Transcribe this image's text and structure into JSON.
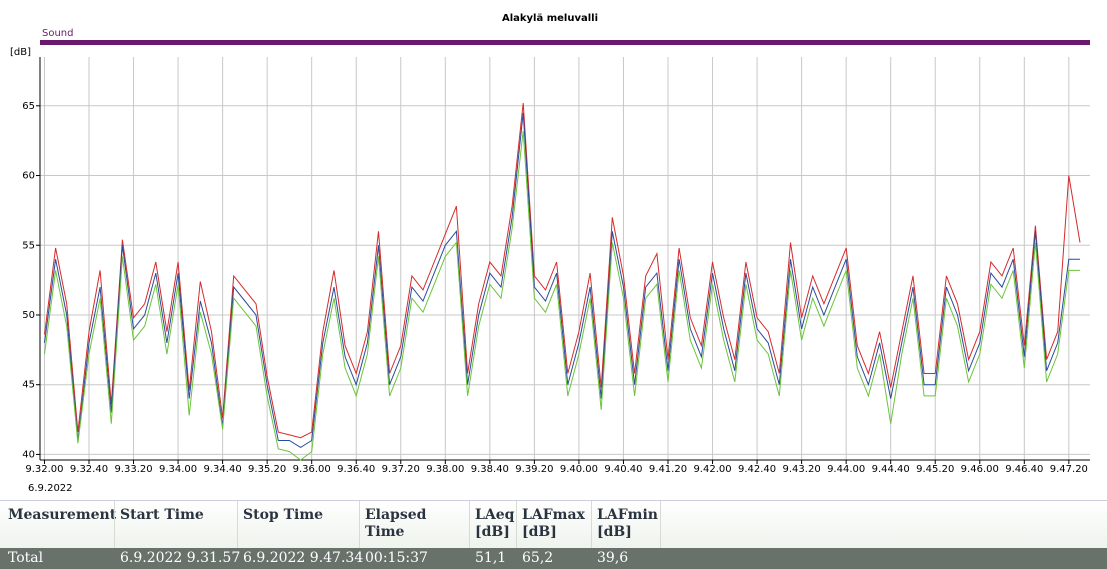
{
  "chart_data": {
    "type": "line",
    "title": "Alakylä meluvalli",
    "legend_label": "Sound",
    "legend_color": "#6a1a6e",
    "y_unit": "[dB]",
    "x_date": "6.9.2022",
    "x": [
      "9.32.00",
      "9.32.10",
      "9.32.20",
      "9.32.30",
      "9.32.40",
      "9.32.50",
      "9.33.00",
      "9.33.10",
      "9.33.20",
      "9.33.30",
      "9.33.40",
      "9.33.50",
      "9.34.00",
      "9.34.10",
      "9.34.20",
      "9.34.30",
      "9.34.40",
      "9.34.50",
      "9.35.00",
      "9.35.10",
      "9.35.20",
      "9.35.30",
      "9.35.40",
      "9.35.50",
      "9.36.00",
      "9.36.10",
      "9.36.20",
      "9.36.30",
      "9.36.40",
      "9.36.50",
      "9.37.00",
      "9.37.10",
      "9.37.20",
      "9.37.30",
      "9.37.40",
      "9.37.50",
      "9.38.00",
      "9.38.10",
      "9.38.20",
      "9.38.30",
      "9.38.40",
      "9.38.50",
      "9.39.00",
      "9.39.10",
      "9.39.20",
      "9.39.30",
      "9.39.40",
      "9.39.50",
      "9.40.00",
      "9.40.10",
      "9.40.20",
      "9.40.30",
      "9.40.40",
      "9.40.50",
      "9.41.00",
      "9.41.10",
      "9.41.20",
      "9.41.30",
      "9.41.40",
      "9.41.50",
      "9.42.00",
      "9.42.10",
      "9.42.20",
      "9.42.30",
      "9.42.40",
      "9.42.50",
      "9.43.00",
      "9.43.10",
      "9.43.20",
      "9.43.30",
      "9.43.40",
      "9.43.50",
      "9.44.00",
      "9.44.10",
      "9.44.20",
      "9.44.30",
      "9.44.40",
      "9.44.50",
      "9.45.00",
      "9.45.10",
      "9.45.20",
      "9.45.30",
      "9.45.40",
      "9.45.50",
      "9.46.00",
      "9.46.10",
      "9.46.20",
      "9.46.30",
      "9.46.40",
      "9.46.50",
      "9.47.00",
      "9.47.10",
      "9.47.20",
      "9.47.30"
    ],
    "series": [
      {
        "name": "LAFmax",
        "color": "#d42a2a",
        "values": [
          48.6,
          54.8,
          50.8,
          41.6,
          48.8,
          53.2,
          43.6,
          55.4,
          49.8,
          50.8,
          53.8,
          48.8,
          53.8,
          44.6,
          52.4,
          48.8,
          42.6,
          52.8,
          51.8,
          50.8,
          45.6,
          41.6,
          41.4,
          41.2,
          41.6,
          48.8,
          53.2,
          47.8,
          45.8,
          48.8,
          56.0,
          45.8,
          47.8,
          52.8,
          51.8,
          53.8,
          55.8,
          57.8,
          45.8,
          50.8,
          53.8,
          52.8,
          57.8,
          65.2,
          52.8,
          51.8,
          53.8,
          45.8,
          48.8,
          53.0,
          44.8,
          57.0,
          52.8,
          45.8,
          52.8,
          54.4,
          46.8,
          54.8,
          49.8,
          47.8,
          53.8,
          49.8,
          46.8,
          53.8,
          49.8,
          48.8,
          45.8,
          55.2,
          49.8,
          52.8,
          50.8,
          52.8,
          54.8,
          47.8,
          45.8,
          48.8,
          44.8,
          48.8,
          52.8,
          45.8,
          45.8,
          52.8,
          50.8,
          46.8,
          48.8,
          53.8,
          52.8,
          54.8,
          47.8,
          56.4,
          46.8,
          48.8,
          60.0,
          55.2
        ]
      },
      {
        "name": "LAeq",
        "color": "#2a4a9a",
        "values": [
          48,
          54,
          50,
          41,
          48,
          52,
          43,
          55,
          49,
          50,
          53,
          48,
          53,
          44,
          51,
          48,
          42,
          52,
          51,
          50,
          45,
          41,
          41,
          40.5,
          41,
          48,
          52,
          47,
          45,
          48,
          55,
          45,
          47,
          52,
          51,
          53,
          55,
          56,
          45,
          50,
          53,
          52,
          57,
          64.5,
          52,
          51,
          53,
          45,
          48,
          52,
          44,
          56,
          52,
          45,
          52,
          53,
          46,
          54,
          49,
          47,
          53,
          49,
          46,
          53,
          49,
          48,
          45,
          54,
          49,
          52,
          50,
          52,
          54,
          47,
          45,
          48,
          44,
          48,
          52,
          45,
          45,
          52,
          50,
          46,
          48,
          53,
          52,
          54,
          47,
          56,
          46,
          48,
          54,
          54
        ]
      },
      {
        "name": "LAFmin",
        "color": "#6ac43a",
        "values": [
          47.2,
          53.2,
          49.2,
          40.8,
          47.2,
          51.2,
          42.2,
          54.2,
          48.2,
          49.2,
          52.2,
          47.2,
          52.2,
          42.8,
          50.2,
          47.2,
          41.8,
          51.2,
          50.2,
          49.2,
          44.2,
          40.4,
          40.2,
          39.6,
          40.2,
          47.2,
          51.2,
          46.2,
          44.2,
          47.2,
          54.2,
          44.2,
          46.2,
          51.2,
          50.2,
          52.2,
          54.2,
          55.2,
          44.2,
          49.2,
          52.2,
          51.2,
          56.2,
          63.2,
          51.2,
          50.2,
          52.2,
          44.2,
          47.2,
          51.2,
          43.2,
          55.2,
          51.2,
          44.2,
          51.2,
          52.2,
          45.2,
          53.2,
          48.2,
          46.2,
          52.2,
          48.2,
          45.2,
          52.2,
          48.2,
          47.2,
          44.2,
          53.2,
          48.2,
          51.2,
          49.2,
          51.2,
          53.2,
          46.2,
          44.2,
          47.2,
          42.2,
          47.2,
          51.2,
          44.2,
          44.2,
          51.2,
          49.2,
          45.2,
          47.2,
          52.2,
          51.2,
          53.2,
          46.2,
          55.2,
          45.2,
          47.2,
          53.2,
          53.2
        ]
      }
    ],
    "xlim": [
      "9.31.56",
      "9.47.39"
    ],
    "xticks": [
      "9.32.00",
      "9.32.40",
      "9.33.20",
      "9.34.00",
      "9.34.40",
      "9.35.20",
      "9.36.00",
      "9.36.40",
      "9.37.20",
      "9.38.00",
      "9.38.40",
      "9.39.20",
      "9.40.00",
      "9.40.40",
      "9.41.20",
      "9.42.00",
      "9.42.40",
      "9.43.20",
      "9.44.00",
      "9.44.40",
      "9.45.20",
      "9.46.00",
      "9.46.40",
      "9.47.20"
    ],
    "ylim": [
      39.6,
      68.5
    ],
    "yticks": [
      40,
      45,
      50,
      55,
      60,
      65
    ],
    "grid": true
  },
  "table": {
    "headers": [
      "Measurement",
      "Start Time",
      "Stop Time",
      "Elapsed Time",
      "LAeq [dB]",
      "LAFmax [dB]",
      "LAFmin [dB]"
    ],
    "rows": [
      [
        "Total",
        "6.9.2022 9.31.57",
        "6.9.2022 9.47.34",
        "00:15:37",
        "51,1",
        "65,2",
        "39,6"
      ]
    ]
  }
}
